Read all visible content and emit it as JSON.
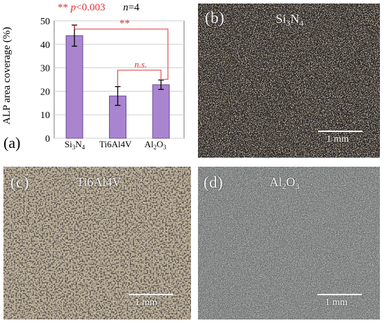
{
  "header": {
    "stars": "**",
    "p_label": "p",
    "p_value": "<0.003",
    "n_label": "n",
    "n_value": "=4"
  },
  "chart_data": {
    "type": "bar",
    "categories": [
      "Si3N4",
      "Ti6Al4V",
      "Al2O3"
    ],
    "values": [
      43.7,
      18.0,
      22.8
    ],
    "errors": [
      4.5,
      4.0,
      2.0
    ],
    "ylabel": "ALP area coverage (%)",
    "ylim": [
      0,
      50
    ],
    "yticks": [
      0,
      10,
      20,
      30,
      40,
      50
    ],
    "grid": true,
    "bar_color": "#a985d0",
    "significance": [
      {
        "pair": [
          "Si3N4",
          "Al2O3"
        ],
        "label": "**"
      },
      {
        "pair": [
          "Ti6Al4V",
          "Al2O3"
        ],
        "label": "n.s."
      }
    ]
  },
  "category_labels": [
    {
      "base": "Si",
      "sub1": "3",
      "mid": "N",
      "sub2": "4"
    },
    {
      "base": "Ti6Al4V"
    },
    {
      "base": "Al",
      "sub1": "2",
      "mid": "O",
      "sub2": "3"
    }
  ],
  "panels": {
    "a": {
      "label": "(a)"
    },
    "b": {
      "label": "(b)",
      "mat_base": "Si",
      "mat_sub1": "3",
      "mat_mid": "N",
      "mat_sub2": "4",
      "scale": "1 mm"
    },
    "c": {
      "label": "(c)",
      "mat_base": "Ti6Al4V",
      "scale": "1 mm"
    },
    "d": {
      "label": "(d)",
      "mat_base": "Al",
      "mat_sub1": "2",
      "mat_mid": "O",
      "mat_sub2": "3",
      "scale": "1 mm"
    }
  },
  "colors": {
    "accent_red": "#e23030",
    "bar": "#a985d0"
  }
}
